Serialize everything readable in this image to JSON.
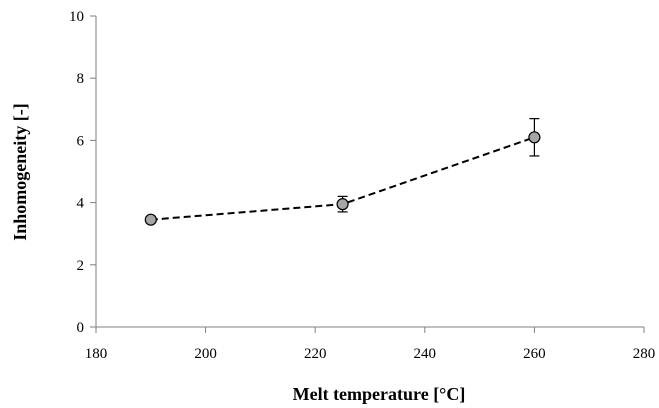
{
  "chart_data": {
    "type": "scatter",
    "xlabel": "Melt temperature [°C]",
    "ylabel": "Inhomogeneity [-]",
    "xlim": [
      180,
      280
    ],
    "ylim": [
      0,
      10
    ],
    "xticks": [
      180,
      200,
      220,
      240,
      260,
      280
    ],
    "yticks": [
      0,
      2,
      4,
      6,
      8,
      10
    ],
    "grid": false,
    "series": [
      {
        "x": [
          190,
          225,
          260
        ],
        "y": [
          3.45,
          3.95,
          6.1
        ],
        "error": [
          0.1,
          0.25,
          0.6
        ],
        "line_style": "dashed",
        "marker_color": "#a6a6a6"
      }
    ]
  }
}
